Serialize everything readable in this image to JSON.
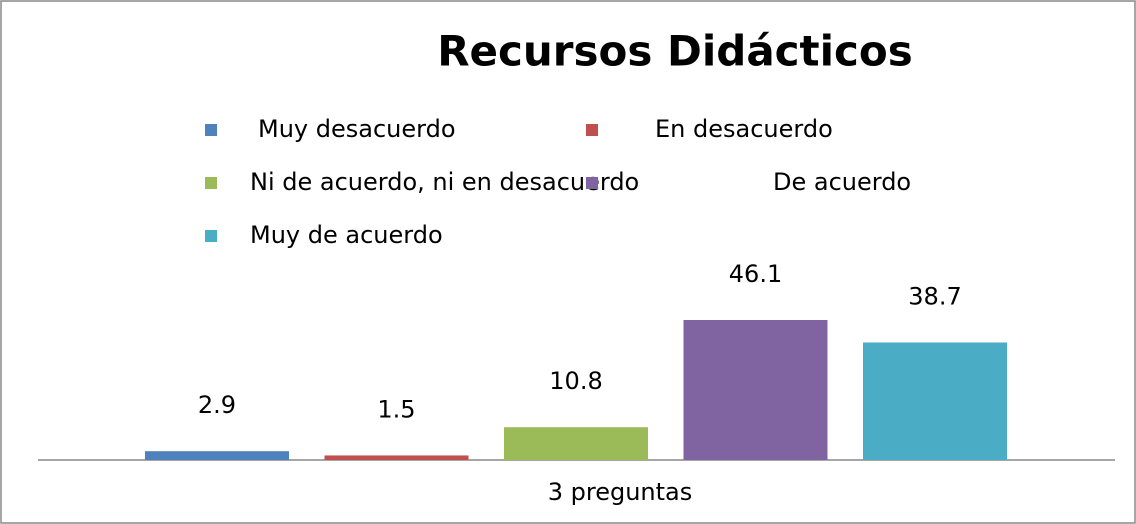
{
  "chart_data": {
    "type": "bar",
    "title": "Recursos Didácticos",
    "categories": [
      "3 preguntas"
    ],
    "series": [
      {
        "name": "Muy desacuerdo",
        "color": "#4f81bd",
        "values": [
          2.9
        ]
      },
      {
        "name": "En desacuerdo",
        "color": "#c0504d",
        "values": [
          1.5
        ]
      },
      {
        "name": "Ni de acuerdo, ni en desacuerdo",
        "color": "#9bbb59",
        "values": [
          10.8
        ]
      },
      {
        "name": "De acuerdo",
        "color": "#8064a2",
        "values": [
          46.1
        ]
      },
      {
        "name": "Muy de acuerdo",
        "color": "#4bacc6",
        "values": [
          38.7
        ]
      }
    ],
    "legend": "top"
  }
}
